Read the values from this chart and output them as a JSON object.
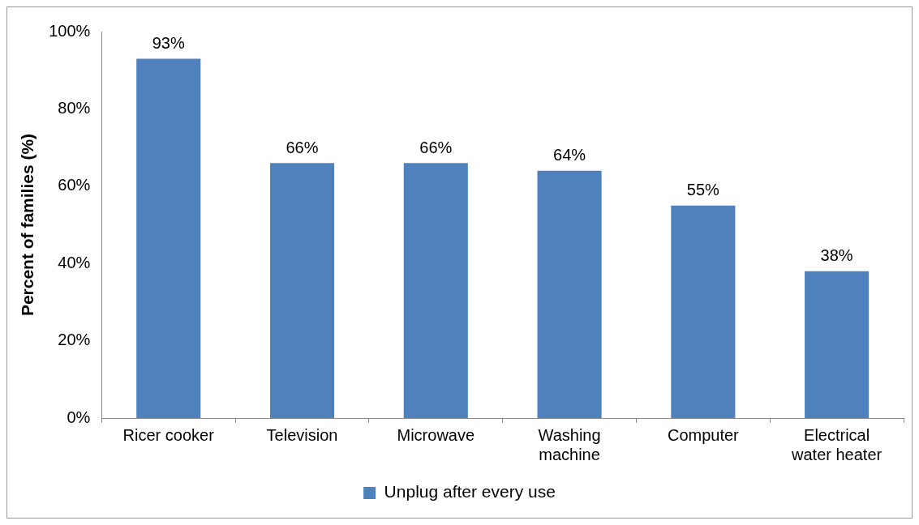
{
  "chart_data": {
    "type": "bar",
    "ylabel": "Percent of families (%)",
    "categories": [
      "Ricer cooker",
      "Television",
      "Microwave",
      "Washing machine",
      "Computer",
      "Electrical water heater"
    ],
    "series": [
      {
        "name": "Unplug after every use",
        "color": "#4f81bd",
        "values": [
          93,
          66,
          66,
          64,
          55,
          38
        ],
        "value_labels": [
          "93%",
          "66%",
          "66%",
          "64%",
          "55%",
          "38%"
        ]
      }
    ],
    "ylim": [
      0,
      100
    ],
    "yticks": [
      {
        "value": 0,
        "label": "0%"
      },
      {
        "value": 20,
        "label": "20%"
      },
      {
        "value": 40,
        "label": "40%"
      },
      {
        "value": 60,
        "label": "60%"
      },
      {
        "value": 80,
        "label": "80%"
      },
      {
        "value": 100,
        "label": "100%"
      }
    ],
    "grid": false,
    "legend": "bottom"
  }
}
